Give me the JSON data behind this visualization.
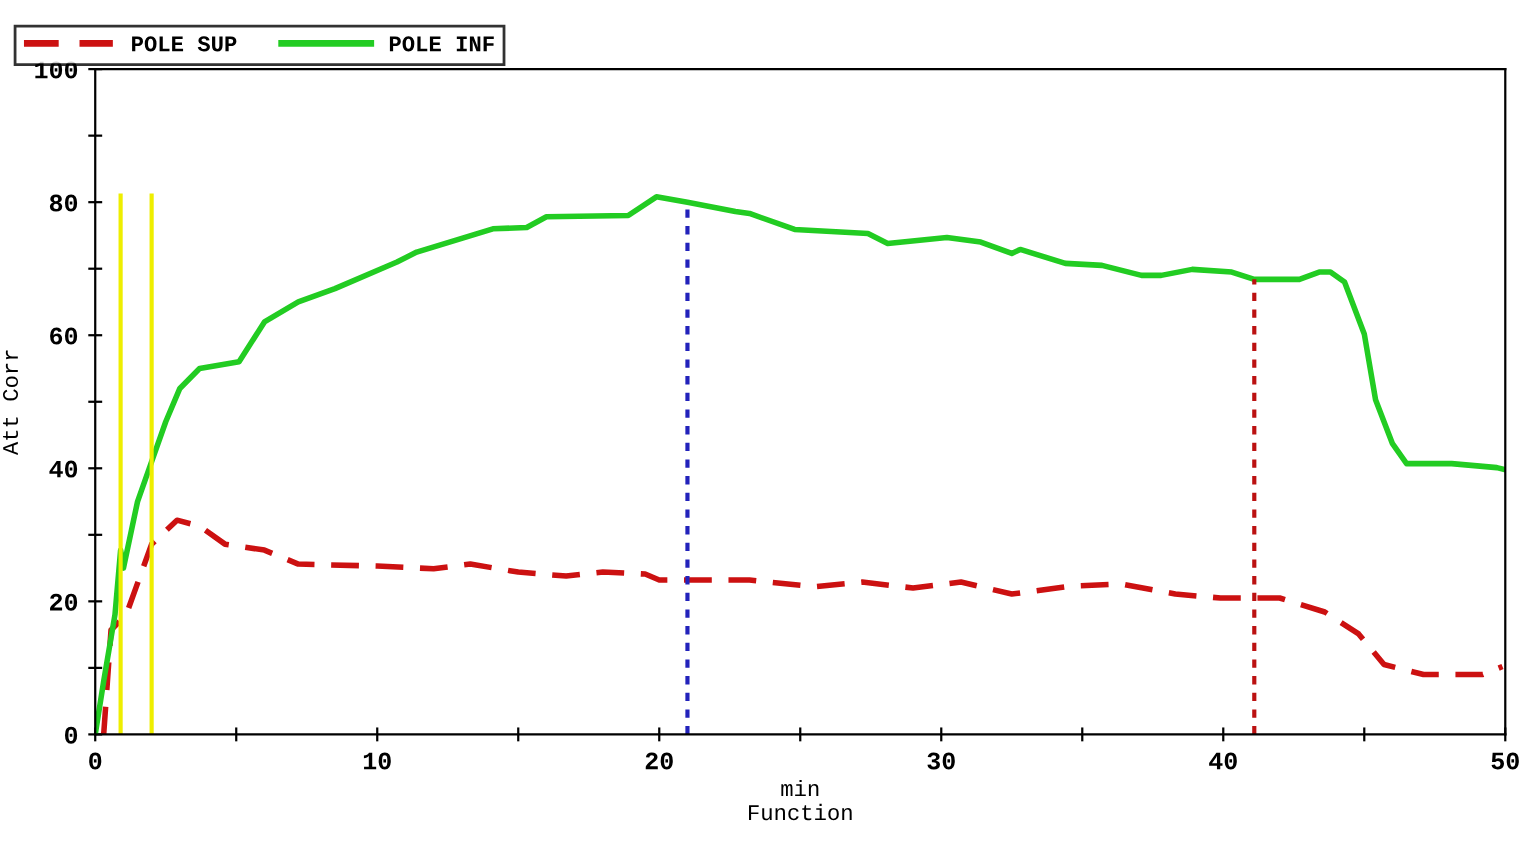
{
  "chart_data": {
    "type": "line",
    "xlabel": "min\nFunction",
    "ylabel": "Att Corr",
    "xlim": [
      0,
      50
    ],
    "ylim": [
      0,
      100
    ],
    "xticks": [
      0,
      {
        "value": 5,
        "label": null
      },
      10,
      {
        "value": 15,
        "label": null
      },
      20,
      {
        "value": 25,
        "label": null
      },
      30,
      {
        "value": 35,
        "label": null
      },
      40,
      {
        "value": 45,
        "label": null
      },
      50
    ],
    "yticks": [
      0,
      {
        "value": 10,
        "label": null
      },
      20,
      {
        "value": 30,
        "label": null
      },
      40,
      {
        "value": 50,
        "label": null
      },
      60,
      {
        "value": 70,
        "label": null
      },
      80,
      {
        "value": 90,
        "label": null
      },
      100
    ],
    "grid": false,
    "legend": "top left",
    "series": [
      {
        "name": "POLE SUP",
        "color": "#cc1111",
        "line_style": "dashed",
        "x": [
          0.3,
          0.56,
          1.1,
          2,
          2.9,
          3.7,
          4.6,
          6,
          7.2,
          10,
          12,
          13.3,
          15,
          16.7,
          18,
          19.5,
          20,
          21,
          23.2,
          25.5,
          27.2,
          29,
          30.7,
          32.5,
          34.6,
          36.4,
          38.3,
          39.9,
          42,
          43.6,
          44.8,
          45.7,
          47.1,
          49.2,
          49.9
        ],
        "values": [
          0,
          15.7,
          18,
          28.6,
          32.2,
          31.3,
          28.6,
          27.7,
          25.6,
          25.3,
          24.9,
          25.6,
          24.4,
          23.8,
          24.4,
          24.1,
          23.2,
          23.2,
          23.2,
          22.2,
          22.9,
          22,
          22.9,
          21.1,
          22.3,
          22.6,
          21.1,
          20.5,
          20.5,
          18.4,
          15.1,
          10.5,
          9,
          9,
          10.2
        ]
      },
      {
        "name": "POLE INF",
        "color": "#22cc22",
        "line_style": "solid",
        "x": [
          0,
          0.3,
          0.7,
          0.9,
          1,
          1.5,
          2,
          2.5,
          3,
          3.7,
          5.1,
          6,
          7.2,
          8.5,
          10.7,
          11.4,
          14.1,
          15.3,
          16,
          18.9,
          19.9,
          21,
          22.7,
          23.2,
          24.8,
          27.4,
          28.1,
          30.2,
          31.4,
          32.5,
          32.8,
          34.4,
          35.7,
          37.1,
          37.8,
          38.9,
          40.3,
          41.1,
          42.7,
          43.4,
          43.8,
          44.3,
          45,
          45.4,
          46,
          46.5,
          48.1,
          49.7,
          50
        ],
        "values": [
          0,
          8,
          18,
          27.7,
          25,
          35,
          41,
          47,
          52,
          55,
          56,
          62,
          65,
          67,
          71,
          72.5,
          76,
          76.2,
          77.8,
          78,
          80.8,
          80,
          78.6,
          78.3,
          75.9,
          75.3,
          73.8,
          74.7,
          74,
          72.3,
          72.9,
          70.8,
          70.5,
          69,
          69,
          69.9,
          69.5,
          68.4,
          68.4,
          69.5,
          69.5,
          68,
          60.2,
          50.3,
          43.7,
          40.7,
          40.7,
          40.1,
          39.8
        ]
      },
      {
        "color": "#eeee00",
        "line_style": "solid",
        "x": [
          0.9,
          0.9
        ],
        "values": [
          0,
          81
        ]
      },
      {
        "color": "#eeee00",
        "line_style": "solid",
        "x": [
          2,
          2
        ],
        "values": [
          0,
          81
        ]
      },
      {
        "color": "#2222bb",
        "line_style": "dotted",
        "x": [
          21,
          21
        ],
        "values": [
          0,
          80
        ]
      },
      {
        "color": "#bb1111",
        "line_style": "dotted",
        "x": [
          41.1,
          41.1
        ],
        "values": [
          0,
          68.4
        ]
      }
    ]
  }
}
